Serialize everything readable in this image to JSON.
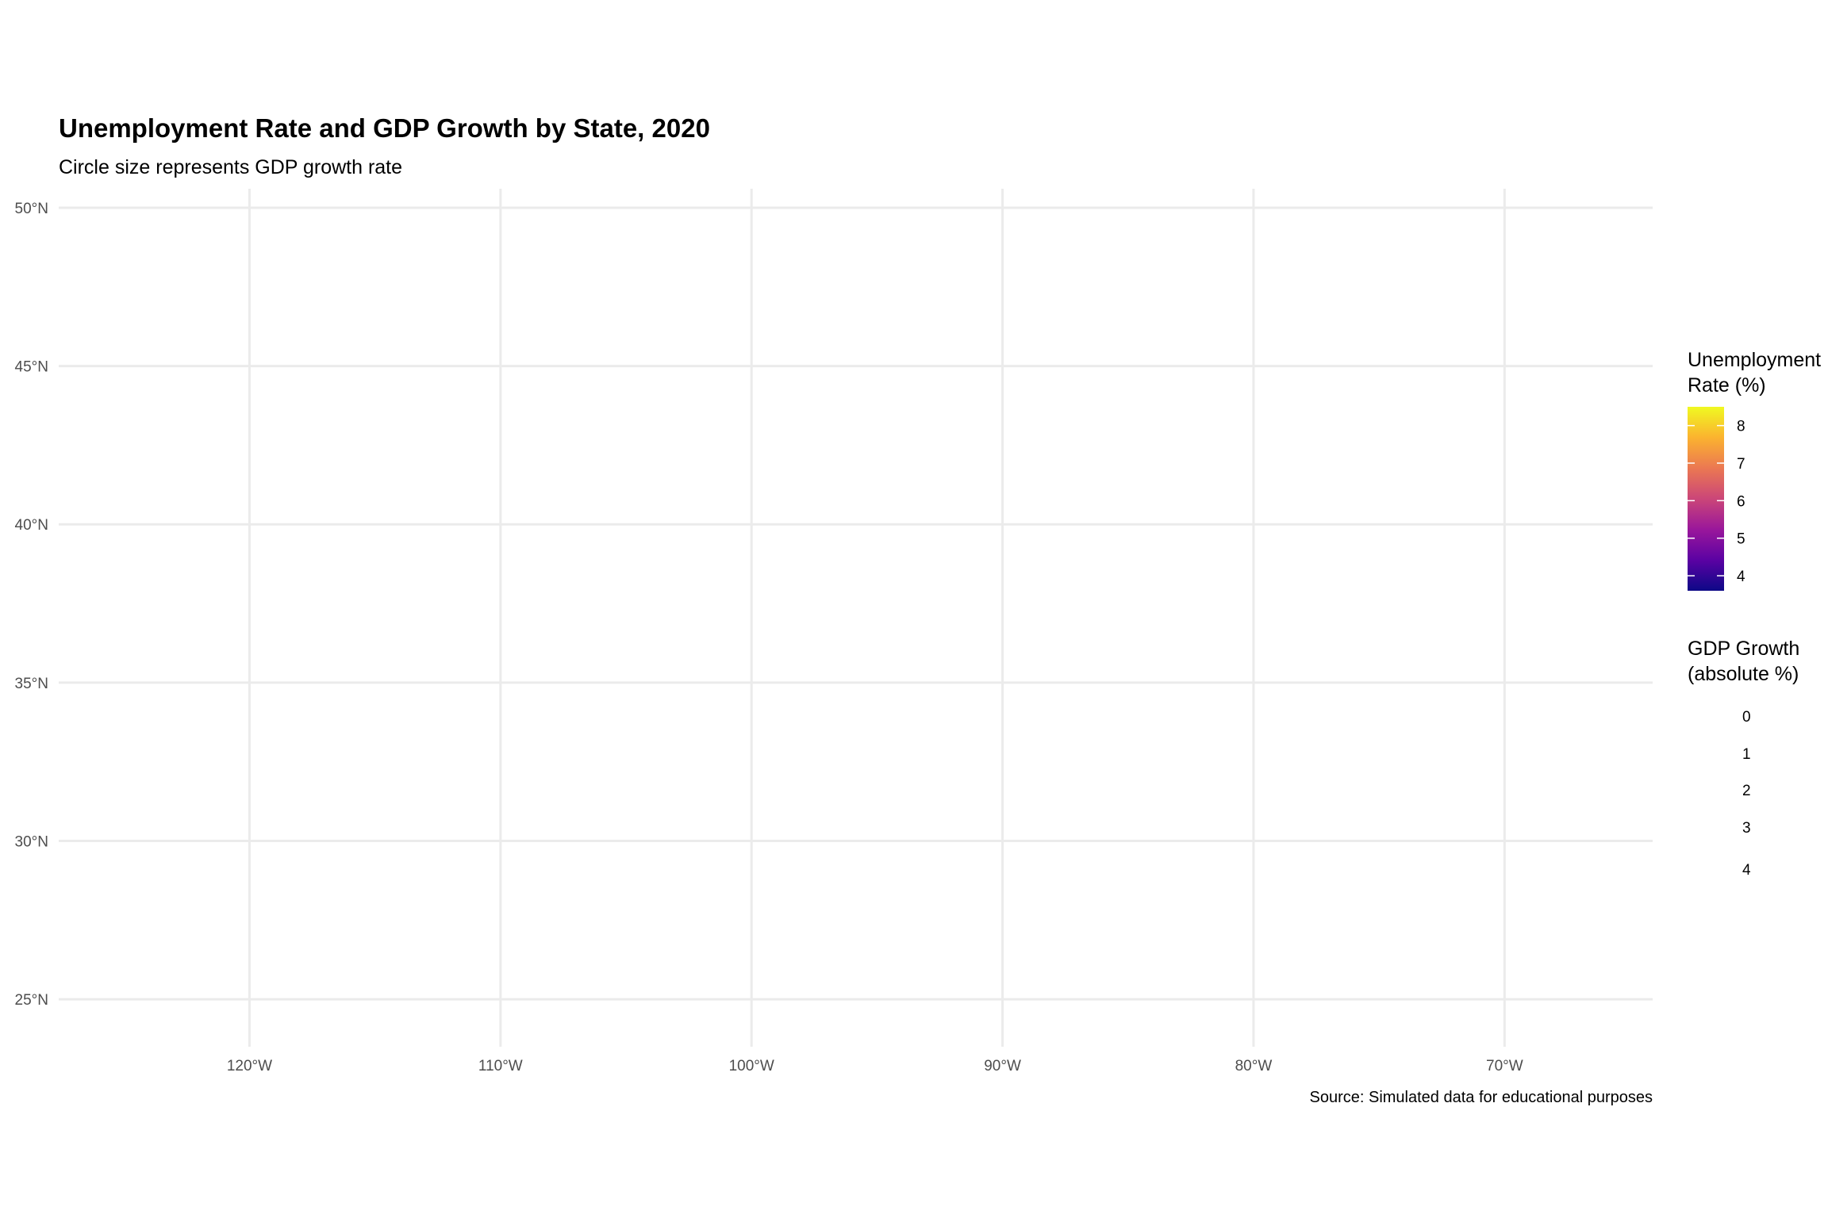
{
  "chart_data": {
    "type": "scatter",
    "title": "Unemployment Rate and GDP Growth by State, 2020",
    "subtitle": "Circle size represents GDP growth rate",
    "caption": "Source: Simulated data for educational purposes",
    "x_ticks": [
      {
        "value": -120,
        "label": "120°W"
      },
      {
        "value": -110,
        "label": "110°W"
      },
      {
        "value": -100,
        "label": "100°W"
      },
      {
        "value": -90,
        "label": "90°W"
      },
      {
        "value": -80,
        "label": "80°W"
      },
      {
        "value": -70,
        "label": "70°W"
      }
    ],
    "y_ticks": [
      {
        "value": 50,
        "label": "50°N"
      },
      {
        "value": 45,
        "label": "45°N"
      },
      {
        "value": 40,
        "label": "40°N"
      },
      {
        "value": 35,
        "label": "35°N"
      },
      {
        "value": 30,
        "label": "30°N"
      },
      {
        "value": 25,
        "label": "25°N"
      }
    ],
    "xlim": [
      -127.6,
      -64.1
    ],
    "ylim": [
      23.5,
      50.6
    ],
    "grid": true,
    "points": [],
    "legend_placement": "right",
    "color_legend": {
      "title_lines": [
        "Unemployment",
        "Rate (%)"
      ],
      "range": [
        3.6,
        8.5
      ],
      "ticks": [
        {
          "value": 8,
          "label": "8"
        },
        {
          "value": 7,
          "label": "7"
        },
        {
          "value": 6,
          "label": "6"
        },
        {
          "value": 5,
          "label": "5"
        },
        {
          "value": 4,
          "label": "4"
        }
      ],
      "colors": [
        "#0d0887",
        "#5b02a3",
        "#9a179b",
        "#cb4678",
        "#eb7852",
        "#fbb32f",
        "#f0f921"
      ]
    },
    "size_legend": {
      "title_lines": [
        "GDP Growth",
        "(absolute %)"
      ],
      "items": [
        {
          "value": 0,
          "label": "0"
        },
        {
          "value": 1,
          "label": "1"
        },
        {
          "value": 2,
          "label": "2"
        },
        {
          "value": 3,
          "label": "3"
        },
        {
          "value": 4,
          "label": "4"
        }
      ]
    }
  }
}
